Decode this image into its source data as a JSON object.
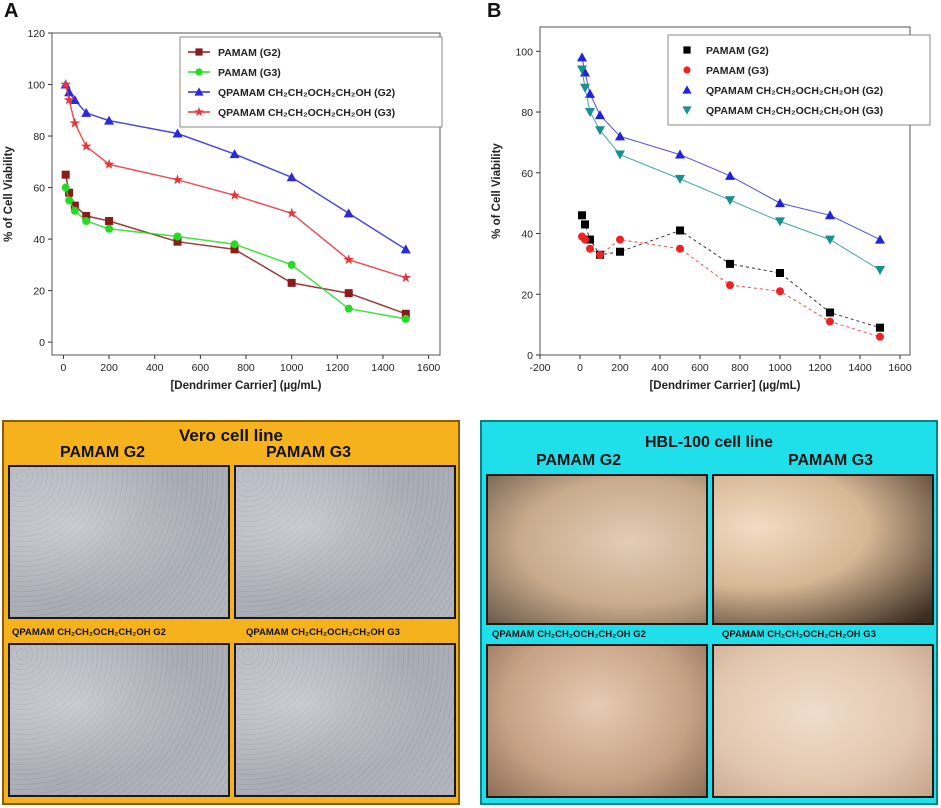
{
  "panel_a_letter": "A",
  "panel_b_letter": "B",
  "chart_data": [
    {
      "type": "line",
      "panel": "A",
      "xlabel": "[Dendrimer Carrier] (µg/mL)",
      "ylabel": "% of Cell Viability",
      "xlim": [
        -50,
        1650
      ],
      "ylim": [
        -5,
        120
      ],
      "xticks": [
        "0",
        "200",
        "400",
        "600",
        "800",
        "1000",
        "1200",
        "1400",
        "1600"
      ],
      "yticks": [
        "0",
        "20",
        "40",
        "60",
        "80",
        "100",
        "120"
      ],
      "legend_position": "top-right",
      "series": [
        {
          "name": "PAMAM (G2)",
          "color": "#8b1a1a",
          "marker": "square",
          "x": [
            10,
            25,
            50,
            100,
            200,
            500,
            750,
            1000,
            1250,
            1500
          ],
          "y": [
            65,
            58,
            53,
            49,
            47,
            39,
            36,
            23,
            19,
            11
          ]
        },
        {
          "name": "PAMAM (G3)",
          "color": "#22dd22",
          "marker": "circle",
          "x": [
            10,
            25,
            50,
            100,
            200,
            500,
            750,
            1000,
            1250,
            1500
          ],
          "y": [
            60,
            55,
            51,
            47,
            44,
            41,
            38,
            30,
            13,
            9
          ]
        },
        {
          "name": "QPAMAM CH₂CH₂OCH₂CH₂OH (G2)",
          "color": "#2a2adb",
          "marker": "triangle",
          "x": [
            10,
            25,
            50,
            100,
            200,
            500,
            750,
            1000,
            1250,
            1500
          ],
          "y": [
            100,
            97,
            94,
            89,
            86,
            81,
            73,
            64,
            50,
            36
          ]
        },
        {
          "name": "QPAMAM CH₂CH₂OCH₂CH₂OH (G3)",
          "color": "#e8343c",
          "marker": "star",
          "x": [
            10,
            25,
            50,
            100,
            200,
            500,
            750,
            1000,
            1250,
            1500
          ],
          "y": [
            100,
            94,
            85,
            76,
            69,
            63,
            57,
            50,
            32,
            25
          ]
        }
      ]
    },
    {
      "type": "scatter",
      "panel": "B",
      "xlabel": "[Dendrimer Carrier] (µg/mL)",
      "ylabel": "% of Cell Viability",
      "xlim": [
        -200,
        1650
      ],
      "ylim": [
        0,
        108
      ],
      "xticks": [
        "-200",
        "0",
        "200",
        "400",
        "600",
        "800",
        "1000",
        "1200",
        "1400",
        "1600"
      ],
      "yticks": [
        "0",
        "20",
        "40",
        "60",
        "80",
        "100"
      ],
      "legend_position": "top-right",
      "series": [
        {
          "name": "PAMAM (G2)",
          "color": "#000000",
          "marker": "square",
          "x": [
            10,
            25,
            50,
            100,
            200,
            500,
            750,
            1000,
            1250,
            1500
          ],
          "y": [
            46,
            43,
            38,
            33,
            34,
            41,
            30,
            27,
            14,
            9
          ]
        },
        {
          "name": "PAMAM (G3)",
          "color": "#ee2222",
          "marker": "circle",
          "x": [
            10,
            25,
            50,
            100,
            200,
            500,
            750,
            1000,
            1250,
            1500
          ],
          "y": [
            39,
            38,
            35,
            33,
            38,
            35,
            23,
            21,
            11,
            6
          ]
        },
        {
          "name": "QPAMAM CH₂CH₂OCH₂CH₂OH (G2)",
          "color": "#2222dd",
          "marker": "triangle",
          "x": [
            10,
            25,
            50,
            100,
            200,
            500,
            750,
            1000,
            1250,
            1500
          ],
          "y": [
            98,
            93,
            86,
            79,
            72,
            66,
            59,
            50,
            46,
            38
          ]
        },
        {
          "name": "QPAMAM CH₂CH₂OCH₂CH₂OH (G3)",
          "color": "#1a8f8f",
          "marker": "triangle-down",
          "x": [
            10,
            25,
            50,
            100,
            200,
            500,
            750,
            1000,
            1250,
            1500
          ],
          "y": [
            94,
            88,
            80,
            74,
            66,
            58,
            51,
            44,
            38,
            28
          ]
        }
      ]
    }
  ],
  "micro_vero": {
    "title": "Vero cell line",
    "col_left": "PAMAM G2",
    "col_right": "PAMAM G3",
    "label_left": "QPAMAM CH₂CH₂OCH₂CH₂OH  G2",
    "label_right": "QPAMAM CH₂CH₂OCH₂CH₂OH  G3",
    "bg_color": "#f6b21c"
  },
  "micro_hbl": {
    "title": "HBL-100 cell line",
    "col_left": "PAMAM G2",
    "col_right": "PAMAM G3",
    "label_left": "QPAMAM CH₂CH₂OCH₂CH₂OH  G2",
    "label_right": "QPAMAM CH₂CH₂OCH₂CH₂OH  G3",
    "bg_color": "#1fe0ea"
  }
}
